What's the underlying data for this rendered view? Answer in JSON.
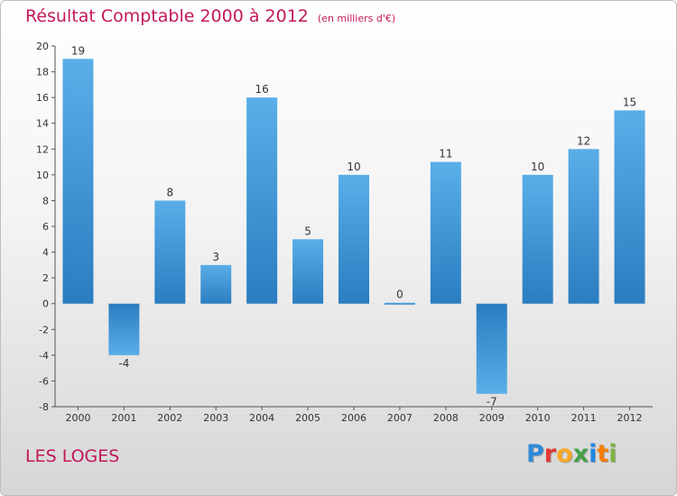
{
  "title": "Résultat Comptable 2000 à 2012",
  "unit": "(en milliers d'€)",
  "town": "LES LOGES",
  "logo": {
    "text": "Proxiti",
    "colors": [
      "#2e8bd8",
      "#e53935",
      "#f9a825",
      "#43a047",
      "#1e88e5",
      "#f57c00",
      "#7cb342"
    ]
  },
  "chart_data": {
    "type": "bar",
    "title": "Résultat Comptable 2000 à 2012",
    "subtitle": "(en milliers d'€)",
    "categories": [
      "2000",
      "2001",
      "2002",
      "2003",
      "2004",
      "2005",
      "2006",
      "2007",
      "2008",
      "2009",
      "2010",
      "2011",
      "2012"
    ],
    "values": [
      19,
      -4,
      8,
      3,
      16,
      5,
      10,
      0,
      11,
      -7,
      10,
      12,
      15
    ],
    "ylim": [
      -8,
      20
    ],
    "yticks": [
      20,
      18,
      16,
      14,
      12,
      10,
      8,
      6,
      4,
      2,
      0,
      -2,
      -4,
      -6,
      -8
    ],
    "grid": false,
    "bar_color_light": "#5aaee8",
    "bar_color_dark": "#2a7dc0"
  }
}
